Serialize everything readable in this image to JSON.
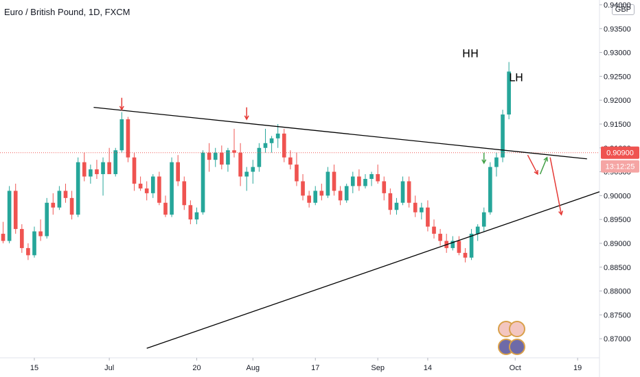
{
  "chart_data": {
    "type": "candlestick",
    "title": "Euro / British Pound, 1D, FXCM",
    "currency": "GBP",
    "ylim": [
      0.866,
      0.941
    ],
    "y_ticks": [
      "0.94000",
      "0.93500",
      "0.93000",
      "0.92500",
      "0.92000",
      "0.91500",
      "0.91000",
      "0.90500",
      "0.90000",
      "0.89500",
      "0.89000",
      "0.88500",
      "0.88000",
      "0.87500",
      "0.87000"
    ],
    "x_labels": [
      {
        "label": "15",
        "index": 5
      },
      {
        "label": "Jul",
        "index": 17
      },
      {
        "label": "20",
        "index": 31
      },
      {
        "label": "Aug",
        "index": 40
      },
      {
        "label": "17",
        "index": 50
      },
      {
        "label": "Sep",
        "index": 60
      },
      {
        "label": "14",
        "index": 68
      },
      {
        "label": "Oct",
        "index": 82
      },
      {
        "label": "19",
        "index": 92
      }
    ],
    "index_range": [
      -0.5,
      95.5
    ],
    "last_price": "0.90900",
    "countdown": "13:12:25",
    "candles": [
      [
        0.892,
        0.8945,
        0.89,
        0.8905
      ],
      [
        0.8905,
        0.902,
        0.89,
        0.901
      ],
      [
        0.901,
        0.9025,
        0.892,
        0.893
      ],
      [
        0.893,
        0.894,
        0.888,
        0.889
      ],
      [
        0.889,
        0.89,
        0.8865,
        0.8875
      ],
      [
        0.8875,
        0.8935,
        0.887,
        0.8925
      ],
      [
        0.8925,
        0.895,
        0.8905,
        0.8915
      ],
      [
        0.8915,
        0.8995,
        0.891,
        0.8985
      ],
      [
        0.8985,
        0.9005,
        0.896,
        0.8975
      ],
      [
        0.8975,
        0.902,
        0.897,
        0.901
      ],
      [
        0.901,
        0.9025,
        0.8985,
        0.8995
      ],
      [
        0.8995,
        0.901,
        0.895,
        0.896
      ],
      [
        0.896,
        0.908,
        0.8955,
        0.907
      ],
      [
        0.907,
        0.909,
        0.903,
        0.904
      ],
      [
        0.904,
        0.9065,
        0.9025,
        0.9055
      ],
      [
        0.9055,
        0.9075,
        0.9035,
        0.9045
      ],
      [
        0.9045,
        0.908,
        0.9,
        0.907
      ],
      [
        0.907,
        0.91,
        0.905,
        0.9045
      ],
      [
        0.9045,
        0.91,
        0.904,
        0.9095
      ],
      [
        0.9095,
        0.9175,
        0.909,
        0.916
      ],
      [
        0.916,
        0.9165,
        0.907,
        0.908
      ],
      [
        0.908,
        0.909,
        0.901,
        0.9025
      ],
      [
        0.9025,
        0.904,
        0.901,
        0.9015
      ],
      [
        0.9015,
        0.903,
        0.899,
        0.9005
      ],
      [
        0.9005,
        0.9045,
        0.8995,
        0.904
      ],
      [
        0.904,
        0.905,
        0.898,
        0.8985
      ],
      [
        0.8985,
        0.9,
        0.8955,
        0.896
      ],
      [
        0.896,
        0.908,
        0.8955,
        0.907
      ],
      [
        0.907,
        0.9085,
        0.902,
        0.903
      ],
      [
        0.903,
        0.904,
        0.897,
        0.898
      ],
      [
        0.898,
        0.899,
        0.894,
        0.895
      ],
      [
        0.895,
        0.8975,
        0.894,
        0.8965
      ],
      [
        0.8965,
        0.9095,
        0.896,
        0.909
      ],
      [
        0.909,
        0.911,
        0.905,
        0.9075
      ],
      [
        0.9075,
        0.91,
        0.906,
        0.909
      ],
      [
        0.909,
        0.9105,
        0.9055,
        0.9065
      ],
      [
        0.9065,
        0.91,
        0.905,
        0.9095
      ],
      [
        0.9095,
        0.914,
        0.908,
        0.909
      ],
      [
        0.909,
        0.911,
        0.902,
        0.904
      ],
      [
        0.904,
        0.906,
        0.901,
        0.905
      ],
      [
        0.905,
        0.9075,
        0.9025,
        0.906
      ],
      [
        0.906,
        0.911,
        0.905,
        0.91
      ],
      [
        0.91,
        0.914,
        0.909,
        0.911
      ],
      [
        0.911,
        0.9125,
        0.909,
        0.912
      ],
      [
        0.912,
        0.915,
        0.91,
        0.913
      ],
      [
        0.913,
        0.914,
        0.907,
        0.908
      ],
      [
        0.908,
        0.9095,
        0.9055,
        0.9065
      ],
      [
        0.9065,
        0.909,
        0.902,
        0.903
      ],
      [
        0.903,
        0.9045,
        0.899,
        0.9
      ],
      [
        0.9,
        0.901,
        0.8975,
        0.8985
      ],
      [
        0.8985,
        0.902,
        0.898,
        0.901
      ],
      [
        0.901,
        0.9025,
        0.899,
        0.9
      ],
      [
        0.9,
        0.906,
        0.8995,
        0.905
      ],
      [
        0.905,
        0.9065,
        0.9,
        0.901
      ],
      [
        0.901,
        0.902,
        0.898,
        0.899
      ],
      [
        0.899,
        0.9025,
        0.8985,
        0.902
      ],
      [
        0.902,
        0.905,
        0.9005,
        0.904
      ],
      [
        0.904,
        0.9055,
        0.901,
        0.902
      ],
      [
        0.902,
        0.9045,
        0.9015,
        0.9035
      ],
      [
        0.9035,
        0.905,
        0.902,
        0.9045
      ],
      [
        0.9045,
        0.9065,
        0.9025,
        0.903
      ],
      [
        0.903,
        0.904,
        0.899,
        0.9005
      ],
      [
        0.9005,
        0.9015,
        0.896,
        0.897
      ],
      [
        0.897,
        0.8995,
        0.896,
        0.8985
      ],
      [
        0.8985,
        0.904,
        0.898,
        0.903
      ],
      [
        0.903,
        0.904,
        0.8975,
        0.8985
      ],
      [
        0.8985,
        0.9,
        0.8955,
        0.8965
      ],
      [
        0.8965,
        0.8985,
        0.895,
        0.8975
      ],
      [
        0.8975,
        0.899,
        0.8925,
        0.8935
      ],
      [
        0.8935,
        0.895,
        0.891,
        0.892
      ],
      [
        0.892,
        0.893,
        0.8895,
        0.8905
      ],
      [
        0.8905,
        0.892,
        0.888,
        0.889
      ],
      [
        0.889,
        0.8915,
        0.8885,
        0.8905
      ],
      [
        0.8905,
        0.8915,
        0.8875,
        0.888
      ],
      [
        0.888,
        0.889,
        0.886,
        0.887
      ],
      [
        0.887,
        0.893,
        0.8865,
        0.892
      ],
      [
        0.892,
        0.894,
        0.8905,
        0.8935
      ],
      [
        0.8935,
        0.8975,
        0.8925,
        0.8965
      ],
      [
        0.8965,
        0.907,
        0.896,
        0.906
      ],
      [
        0.906,
        0.909,
        0.904,
        0.908
      ],
      [
        0.908,
        0.918,
        0.907,
        0.917
      ],
      [
        0.917,
        0.928,
        0.916,
        0.926
      ]
    ],
    "annotations": {
      "labels": [
        "HH",
        "LH"
      ]
    }
  }
}
